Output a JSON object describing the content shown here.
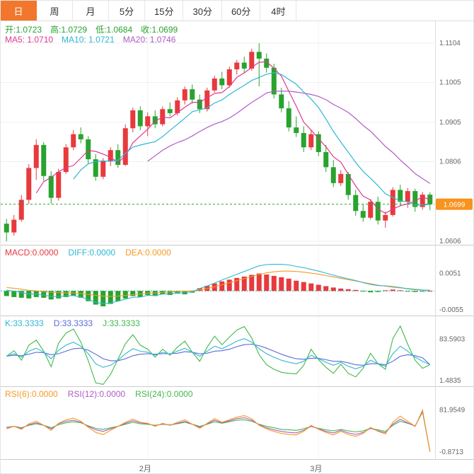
{
  "colors": {
    "up": "#e8393d",
    "down": "#28a32e",
    "ma5": "#e0398f",
    "ma10": "#2fb7d4",
    "ma20": "#b05cc6",
    "diff": "#2fb7d4",
    "dea": "#f59a23",
    "k": "#2fb7d4",
    "d": "#5b6bd5",
    "j": "#42b84a",
    "rsi6": "#f59a23",
    "rsi12": "#b05cc6",
    "rsi24": "#42b84a",
    "price_line": "#28a32e",
    "badge_bg": "#f7931e",
    "badge_text": "#ffffff",
    "tab_active_bg": "#f2762b",
    "grid": "#efefef",
    "vgrid": "#f4f4f4",
    "axis_text": "#666666",
    "zero_line": "#2ab5b5"
  },
  "toolbar": {
    "tabs": [
      {
        "label": "日",
        "active": true
      },
      {
        "label": "周",
        "active": false
      },
      {
        "label": "月",
        "active": false
      },
      {
        "label": "5分",
        "active": false
      },
      {
        "label": "15分",
        "active": false
      },
      {
        "label": "30分",
        "active": false
      },
      {
        "label": "60分",
        "active": false
      },
      {
        "label": "4时",
        "active": false
      }
    ]
  },
  "ohlc_bar": {
    "open": "开:1.0723",
    "high": "高:1.0729",
    "low": "低:1.0684",
    "close": "收:1.0699"
  },
  "ma_bar": {
    "ma5": "MA5: 1.0710",
    "ma10": "MA10: 1.0721",
    "ma20": "MA20: 1.0746"
  },
  "indicators": {
    "macd": {
      "labels": {
        "macd": "MACD:0.0000",
        "diff": "DIFF:0.0000",
        "dea": "DEA:0.0000"
      }
    },
    "kdj": {
      "labels": {
        "k": "K:33.3333",
        "d": "D:33.3333",
        "j": "J:33.3333"
      }
    },
    "rsi": {
      "labels": {
        "rsi6": "RSI(6):0.0000",
        "rsi12": "RSI(12):0.0000",
        "rsi24": "RSI(24):0.0000"
      }
    }
  },
  "chart_data": {
    "type": "candlestick",
    "timeframe": "日",
    "main": {
      "y_range": [
        1.0597,
        1.1159
      ],
      "y_ticks": [
        {
          "label": "1.1104",
          "value": 1.1104
        },
        {
          "label": "1.1005",
          "value": 1.1005
        },
        {
          "label": "1.0905",
          "value": 1.0905
        },
        {
          "label": "1.0806",
          "value": 1.0806
        },
        {
          "label": "1.0606",
          "value": 1.0606
        }
      ],
      "current_price": {
        "label": "1.0699",
        "value": 1.0699
      },
      "ma_periods": [
        5,
        10,
        20
      ],
      "x_labels": [
        {
          "label": "2月",
          "index": 19
        },
        {
          "label": "3月",
          "index": 42
        }
      ],
      "ohlc": [
        [
          1.065,
          1.0662,
          1.0606,
          1.0628
        ],
        [
          1.0628,
          1.0672,
          1.062,
          1.066
        ],
        [
          1.066,
          1.0722,
          1.0655,
          1.071
        ],
        [
          1.071,
          1.08,
          1.07,
          1.079
        ],
        [
          1.079,
          1.0862,
          1.076,
          1.0848
        ],
        [
          1.0848,
          1.0855,
          1.0758,
          1.077
        ],
        [
          1.077,
          1.0782,
          1.07,
          1.0715
        ],
        [
          1.0715,
          1.0788,
          1.0708,
          1.078
        ],
        [
          1.078,
          1.085,
          1.0775,
          1.0842
        ],
        [
          1.0842,
          1.0885,
          1.0835,
          1.0875
        ],
        [
          1.0875,
          1.0892,
          1.0852,
          1.0862
        ],
        [
          1.0862,
          1.087,
          1.08,
          1.0812
        ],
        [
          1.0812,
          1.0825,
          1.0758,
          1.0768
        ],
        [
          1.0768,
          1.0815,
          1.0762,
          1.0808
        ],
        [
          1.0808,
          1.0842,
          1.0795,
          1.0835
        ],
        [
          1.0835,
          1.085,
          1.079,
          1.0798
        ],
        [
          1.0798,
          1.09,
          1.0795,
          1.089
        ],
        [
          1.089,
          1.0942,
          1.088,
          1.0935
        ],
        [
          1.0935,
          1.0945,
          1.0885,
          1.0895
        ],
        [
          1.0895,
          1.093,
          1.087,
          1.092
        ],
        [
          1.092,
          1.0935,
          1.089,
          1.09
        ],
        [
          1.09,
          1.0945,
          1.0895,
          1.0938
        ],
        [
          1.0938,
          1.0955,
          1.092,
          1.0928
        ],
        [
          1.0928,
          1.0968,
          1.0922,
          1.096
        ],
        [
          1.096,
          1.0995,
          1.095,
          1.0988
        ],
        [
          1.0988,
          1.1,
          1.0952,
          1.0962
        ],
        [
          1.0962,
          1.0975,
          1.0928,
          1.0938
        ],
        [
          1.0938,
          1.0992,
          1.0932,
          1.0985
        ],
        [
          1.0985,
          1.1022,
          1.098,
          1.1015
        ],
        [
          1.1015,
          1.1032,
          1.0988,
          1.0998
        ],
        [
          1.0998,
          1.1045,
          1.0992,
          1.1038
        ],
        [
          1.1038,
          1.1062,
          1.1025,
          1.1055
        ],
        [
          1.1055,
          1.107,
          1.1028,
          1.104
        ],
        [
          1.104,
          1.109,
          1.1035,
          1.1082
        ],
        [
          1.1082,
          1.1104,
          1.0995,
          1.1065
        ],
        [
          1.1065,
          1.1078,
          1.103,
          1.1042
        ],
        [
          1.1042,
          1.1052,
          1.0965,
          1.0975
        ],
        [
          1.0975,
          1.0992,
          1.093,
          1.094
        ],
        [
          1.094,
          1.0958,
          1.0882,
          1.0892
        ],
        [
          1.0892,
          1.092,
          1.0868,
          1.0878
        ],
        [
          1.0878,
          1.0895,
          1.083,
          1.0842
        ],
        [
          1.0842,
          1.0885,
          1.0835,
          1.0875
        ],
        [
          1.0875,
          1.0882,
          1.082,
          1.083
        ],
        [
          1.083,
          1.0848,
          1.078,
          1.0792
        ],
        [
          1.0792,
          1.081,
          1.0742,
          1.0752
        ],
        [
          1.0752,
          1.0785,
          1.0745,
          1.0775
        ],
        [
          1.0775,
          1.078,
          1.071,
          1.0722
        ],
        [
          1.0722,
          1.0735,
          1.067,
          1.0682
        ],
        [
          1.0682,
          1.07,
          1.0655,
          1.0665
        ],
        [
          1.0665,
          1.0712,
          1.066,
          1.0705
        ],
        [
          1.0705,
          1.0718,
          1.0648,
          1.0658
        ],
        [
          1.0658,
          1.068,
          1.064,
          1.0672
        ],
        [
          1.0672,
          1.0742,
          1.0668,
          1.0735
        ],
        [
          1.0735,
          1.0748,
          1.0695,
          1.0705
        ],
        [
          1.0705,
          1.074,
          1.069,
          1.0732
        ],
        [
          1.0732,
          1.0738,
          1.068,
          1.0692
        ],
        [
          1.0692,
          1.073,
          1.0685,
          1.0723
        ],
        [
          1.0723,
          1.0729,
          1.0684,
          1.0699
        ]
      ]
    },
    "macd": {
      "y_range": [
        -0.0072,
        0.0133
      ],
      "y_ticks": [
        {
          "label": "0.0051",
          "value": 0.0051
        },
        {
          "label": "-0.0055",
          "value": -0.0055
        }
      ],
      "hist": [
        -0.0015,
        -0.0018,
        -0.002,
        -0.0022,
        -0.0018,
        -0.002,
        -0.0025,
        -0.0022,
        -0.0018,
        -0.0015,
        -0.002,
        -0.003,
        -0.004,
        -0.0045,
        -0.0038,
        -0.003,
        -0.0022,
        -0.0015,
        -0.0018,
        -0.0012,
        -0.0015,
        -0.001,
        -0.0012,
        -0.0008,
        -0.001,
        -0.0005,
        0.0008,
        0.0015,
        0.0022,
        0.0028,
        0.0033,
        0.0038,
        0.0042,
        0.0047,
        0.0051,
        0.0048,
        0.0044,
        0.004,
        0.0036,
        0.003,
        0.0026,
        0.0022,
        0.0018,
        0.0014,
        0.001,
        0.0007,
        0.0005,
        0.0003,
        -0.0002,
        -0.0004,
        -0.0003,
        0.0002,
        0.0004,
        0.0002,
        -0.0002,
        -0.0003,
        -0.0001,
        0.0
      ],
      "dea": [
        0.001,
        0.0008,
        0.0005,
        0.0002,
        0.0,
        -0.0002,
        -0.0004,
        -0.0005,
        -0.0006,
        -0.0006,
        -0.0008,
        -0.001,
        -0.0013,
        -0.0015,
        -0.0016,
        -0.0015,
        -0.0013,
        -0.0011,
        -0.0009,
        -0.0007,
        -0.0006,
        -0.0004,
        -0.0003,
        -0.0002,
        -0.0001,
        0.0,
        0.0003,
        0.0007,
        0.0012,
        0.0018,
        0.0024,
        0.003,
        0.0036,
        0.0042,
        0.0048,
        0.0053,
        0.0056,
        0.0058,
        0.0058,
        0.0057,
        0.0055,
        0.0052,
        0.0049,
        0.0045,
        0.0041,
        0.0037,
        0.0033,
        0.0029,
        0.0025,
        0.0021,
        0.0017,
        0.0014,
        0.0011,
        0.0009,
        0.0007,
        0.0005,
        0.0003,
        0.0002
      ]
    },
    "kdj": {
      "y_range": [
        -9.7,
        129.5
      ],
      "y_ticks": [
        {
          "label": "83.5903",
          "value": 83.5903
        },
        {
          "label": "1.4835",
          "value": 1.4835
        }
      ],
      "k": [
        50,
        55,
        48,
        60,
        66,
        58,
        45,
        62,
        72,
        78,
        70,
        55,
        35,
        28,
        32,
        42,
        55,
        65,
        60,
        58,
        52,
        58,
        54,
        60,
        66,
        58,
        50,
        60,
        70,
        65,
        72,
        80,
        85,
        78,
        65,
        55,
        48,
        42,
        38,
        35,
        40,
        52,
        45,
        38,
        32,
        38,
        30,
        25,
        30,
        42,
        35,
        30,
        55,
        70,
        60,
        48,
        40,
        33.3333
      ],
      "d": [
        50,
        52,
        51,
        54,
        58,
        57,
        53,
        55,
        60,
        65,
        66,
        62,
        54,
        45,
        41,
        41,
        45,
        51,
        54,
        55,
        54,
        55,
        55,
        56,
        59,
        58,
        55,
        56,
        60,
        61,
        64,
        69,
        73,
        74,
        71,
        66,
        60,
        54,
        49,
        45,
        44,
        46,
        46,
        43,
        40,
        40,
        37,
        33,
        32,
        35,
        35,
        33,
        40,
        50,
        53,
        51,
        47,
        33.3333
      ]
    },
    "rsi": {
      "y_range": [
        -14.7,
        127.5
      ],
      "y_ticks": [
        {
          "label": "81.9549",
          "value": 81.9549
        },
        {
          "label": "-0.8713",
          "value": -0.8713
        }
      ],
      "rsi6": [
        45,
        50,
        44,
        55,
        60,
        52,
        42,
        56,
        63,
        66,
        60,
        48,
        38,
        34,
        42,
        50,
        58,
        64,
        58,
        56,
        50,
        56,
        52,
        58,
        63,
        54,
        46,
        56,
        65,
        58,
        63,
        68,
        71,
        65,
        52,
        45,
        40,
        36,
        34,
        33,
        40,
        52,
        44,
        38,
        33,
        40,
        34,
        30,
        36,
        48,
        40,
        35,
        58,
        70,
        60,
        50,
        82,
        0
      ],
      "rsi12": [
        47,
        50,
        46,
        53,
        57,
        52,
        45,
        55,
        60,
        62,
        58,
        50,
        43,
        40,
        45,
        50,
        56,
        61,
        57,
        55,
        51,
        55,
        52,
        56,
        60,
        54,
        48,
        55,
        62,
        57,
        61,
        65,
        67,
        62,
        53,
        47,
        43,
        40,
        38,
        37,
        42,
        50,
        45,
        40,
        37,
        42,
        37,
        34,
        38,
        46,
        41,
        37,
        54,
        64,
        57,
        50,
        80,
        0
      ],
      "rsi24": [
        48,
        50,
        47,
        52,
        55,
        52,
        47,
        53,
        57,
        59,
        57,
        51,
        46,
        44,
        47,
        50,
        54,
        58,
        55,
        54,
        52,
        54,
        53,
        55,
        58,
        54,
        50,
        54,
        59,
        56,
        59,
        62,
        63,
        60,
        54,
        50,
        47,
        44,
        43,
        42,
        45,
        50,
        46,
        43,
        41,
        44,
        41,
        39,
        41,
        46,
        43,
        40,
        52,
        60,
        56,
        51,
        78,
        0
      ]
    }
  }
}
